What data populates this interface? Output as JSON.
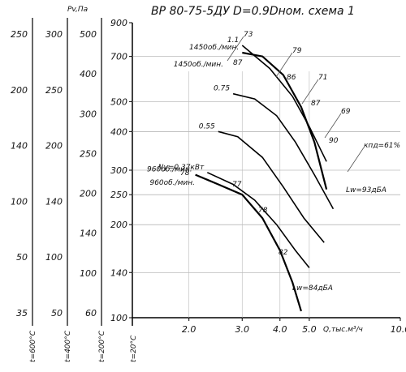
{
  "chart_data": {
    "type": "line",
    "title": "ВР 80-75-5ДУ D=0.9Dном. схема 1",
    "y_scale": "log",
    "x_scale": "log",
    "xlabel": "Q,тыс.м³/ч",
    "ylabel": "Pv,Па",
    "xlim": [
      1.3,
      10.0
    ],
    "ylim": [
      100,
      900
    ],
    "x_ticks": [
      "2.0",
      "3.0",
      "4.0",
      "5.0",
      "10.0"
    ],
    "y_axes": [
      {
        "label": "t=20°C",
        "ticks": [
          "900",
          "700",
          "500",
          "400",
          "300",
          "250",
          "200",
          "140",
          "100"
        ]
      },
      {
        "label": "t=200°C",
        "ticks": [
          "500",
          "400",
          "300",
          "250",
          "200",
          "140",
          "100",
          "60"
        ]
      },
      {
        "label": "t=400°C",
        "ticks": [
          "300",
          "250",
          "200",
          "140",
          "100",
          "50"
        ]
      },
      {
        "label": "t=600°C",
        "ticks": [
          "250",
          "200",
          "140",
          "100",
          "50",
          "35"
        ]
      }
    ],
    "units_label": "Pv,Па",
    "speed_labels": [
      "1450об./мин.",
      "960об./мин."
    ],
    "power_labels": [
      "1.1",
      "0.75",
      "0.55",
      "Ny=0.37кВт"
    ],
    "efficiency_labels": [
      "87",
      "86",
      "87",
      "90",
      "78",
      "77",
      "78",
      "82"
    ],
    "efficiency_rays": [
      "73",
      "79",
      "71",
      "69",
      "кпд=61%"
    ],
    "noise_labels": [
      "Lw=93дБА",
      "Lw=84дБА"
    ],
    "series": [
      {
        "name": "1450об./мин.",
        "x": [
          3.0,
          3.5,
          4.1,
          4.7,
          5.2,
          5.7
        ],
        "y": [
          720,
          700,
          610,
          480,
          370,
          260
        ]
      },
      {
        "name": "960об./мин.",
        "x": [
          2.1,
          2.5,
          3.0,
          3.5,
          4.0,
          4.4,
          4.7
        ],
        "y": [
          290,
          270,
          250,
          210,
          165,
          130,
          105
        ]
      },
      {
        "name": "0.75",
        "x": [
          2.8,
          3.3,
          3.9,
          4.5,
          5.2,
          6.0
        ],
        "y": [
          530,
          510,
          450,
          370,
          290,
          225
        ]
      },
      {
        "name": "0.55",
        "x": [
          2.5,
          2.9,
          3.5,
          4.1,
          4.8,
          5.6
        ],
        "y": [
          400,
          385,
          330,
          265,
          210,
          175
        ]
      },
      {
        "name": "1.1",
        "x": [
          3.0,
          3.7,
          4.4,
          5.0,
          5.7
        ],
        "y": [
          760,
          640,
          520,
          415,
          320
        ]
      },
      {
        "name": "Ny=0.37кВт",
        "x": [
          2.3,
          2.8,
          3.3,
          3.9,
          4.5,
          5.0
        ],
        "y": [
          295,
          270,
          240,
          200,
          165,
          145
        ]
      }
    ]
  }
}
